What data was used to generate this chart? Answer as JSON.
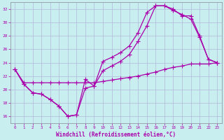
{
  "xlabel": "Windchill (Refroidissement éolien,°C)",
  "xlim": [
    -0.5,
    23.5
  ],
  "ylim": [
    15.0,
    33.0
  ],
  "yticks": [
    16,
    18,
    20,
    22,
    24,
    26,
    28,
    30,
    32
  ],
  "xticks": [
    0,
    1,
    2,
    3,
    4,
    5,
    6,
    7,
    8,
    9,
    10,
    11,
    12,
    13,
    14,
    15,
    16,
    17,
    18,
    19,
    20,
    21,
    22,
    23
  ],
  "bg_color": "#c9eef0",
  "grid_color": "#b0b8d8",
  "line_color": "#aa00aa",
  "line1_x": [
    0,
    1,
    2,
    3,
    4,
    5,
    6,
    7,
    8,
    9,
    10,
    11,
    12,
    13,
    14,
    15,
    16,
    17,
    18,
    19,
    20,
    21,
    22,
    23
  ],
  "line1_y": [
    23.0,
    20.8,
    19.5,
    19.3,
    18.5,
    17.5,
    16.0,
    16.2,
    21.5,
    20.5,
    24.2,
    24.8,
    25.5,
    26.5,
    28.5,
    31.5,
    32.5,
    32.5,
    31.8,
    31.2,
    30.5,
    27.8,
    24.5,
    24.0
  ],
  "line2_x": [
    0,
    1,
    2,
    3,
    4,
    5,
    6,
    7,
    8,
    9,
    10,
    11,
    12,
    13,
    14,
    15,
    16,
    17,
    18,
    19,
    20,
    21,
    22,
    23
  ],
  "line2_y": [
    23.0,
    20.8,
    19.5,
    19.3,
    18.5,
    17.5,
    16.0,
    16.2,
    20.2,
    20.5,
    22.8,
    23.5,
    24.2,
    25.2,
    27.2,
    29.5,
    32.5,
    32.5,
    32.0,
    31.0,
    31.0,
    28.0,
    24.5,
    24.0
  ],
  "line3_x": [
    0,
    1,
    2,
    3,
    4,
    5,
    6,
    7,
    8,
    9,
    10,
    11,
    12,
    13,
    14,
    15,
    16,
    17,
    18,
    19,
    20,
    21,
    22,
    23
  ],
  "line3_y": [
    23.0,
    21.0,
    21.0,
    21.0,
    21.0,
    21.0,
    21.0,
    21.0,
    21.0,
    21.0,
    21.2,
    21.4,
    21.6,
    21.8,
    22.0,
    22.3,
    22.6,
    23.0,
    23.3,
    23.5,
    23.8,
    23.8,
    23.8,
    24.0
  ]
}
